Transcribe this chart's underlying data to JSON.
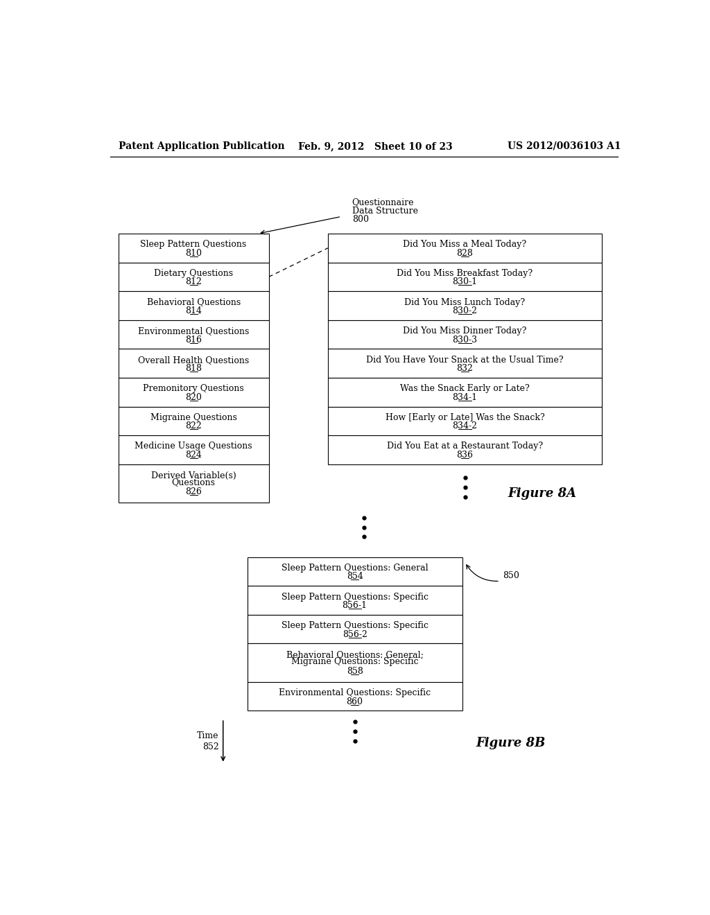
{
  "header_left": "Patent Application Publication",
  "header_mid": "Feb. 9, 2012   Sheet 10 of 23",
  "header_right": "US 2012/0036103 A1",
  "left_box_items": [
    {
      "label": "Sleep Pattern Questions",
      "num": "810"
    },
    {
      "label": "Dietary Questions",
      "num": "812"
    },
    {
      "label": "Behavioral Questions",
      "num": "814"
    },
    {
      "label": "Environmental Questions",
      "num": "816"
    },
    {
      "label": "Overall Health Questions",
      "num": "818"
    },
    {
      "label": "Premonitory Questions",
      "num": "820"
    },
    {
      "label": "Migraine Questions",
      "num": "822"
    },
    {
      "label": "Medicine Usage Questions",
      "num": "824"
    },
    {
      "label": "Derived Variable(s)\nQuestions",
      "num": "826"
    }
  ],
  "right_box_items": [
    {
      "label": "Did You Miss a Meal Today?",
      "num": "828"
    },
    {
      "label": "Did You Miss Breakfast Today?",
      "num": "830-1"
    },
    {
      "label": "Did You Miss Lunch Today?",
      "num": "830-2"
    },
    {
      "label": "Did You Miss Dinner Today?",
      "num": "830-3"
    },
    {
      "label": "Did You Have Your Snack at the Usual Time?",
      "num": "832"
    },
    {
      "label": "Was the Snack Early or Late?",
      "num": "834-1"
    },
    {
      "label": "How [Early or Late] Was the Snack?",
      "num": "834-2"
    },
    {
      "label": "Did You Eat at a Restaurant Today?",
      "num": "836"
    }
  ],
  "fig8a_label": "Figure 8A",
  "fig8b_label": "Figure 8B",
  "bottom_box_items": [
    {
      "label": "Sleep Pattern Questions: General",
      "num": "854"
    },
    {
      "label": "Sleep Pattern Questions: Specific",
      "num": "856-1"
    },
    {
      "label": "Sleep Pattern Questions: Specific",
      "num": "856-2"
    },
    {
      "label": "Behavioral Questions: General;\nMigraine Questions: Specific",
      "num": "858"
    },
    {
      "label": "Environmental Questions: Specific",
      "num": "860"
    }
  ],
  "bottom_annotation": "850",
  "time_label": "Time\n852",
  "bg_color": "#ffffff",
  "text_color": "#000000",
  "box_color": "#ffffff",
  "box_edge_color": "#000000"
}
